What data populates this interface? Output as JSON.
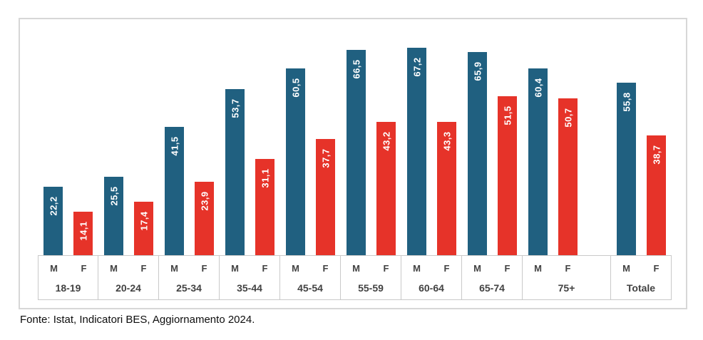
{
  "footer": {
    "source": "Fonte: Istat, Indicatori BES, Aggiornamento 2024."
  },
  "chart_data": {
    "type": "bar",
    "title": "",
    "xlabel": "",
    "ylabel": "",
    "ylim": [
      0,
      77
    ],
    "grid": false,
    "legend_position": "none",
    "decimal_separator": ",",
    "value_label_color": "#FFFFFF",
    "axis_text_color": "#424242",
    "categories": [
      "18-19",
      "20-24",
      "25-34",
      "35-44",
      "45-54",
      "55-59",
      "60-64",
      "65-74",
      "75+",
      "Totale"
    ],
    "wide_category": "75+",
    "group_sex_labels": [
      "M",
      "F"
    ],
    "series": [
      {
        "name": "M",
        "color": "#206080",
        "values": [
          22.2,
          25.5,
          41.5,
          53.7,
          60.5,
          66.5,
          67.2,
          65.9,
          60.4,
          55.8
        ],
        "labels": [
          "22,2",
          "25,5",
          "41,5",
          "53,7",
          "60,5",
          "66,5",
          "67,2",
          "65,9",
          "60,4",
          "55,8"
        ]
      },
      {
        "name": "F",
        "color": "#E63329",
        "values": [
          14.1,
          17.4,
          23.9,
          31.1,
          37.7,
          43.2,
          43.3,
          51.5,
          50.7,
          38.7
        ],
        "labels": [
          "14,1",
          "17,4",
          "23,9",
          "31,1",
          "37,7",
          "43,2",
          "43,3",
          "51,5",
          "50,7",
          "38,7"
        ]
      }
    ]
  }
}
